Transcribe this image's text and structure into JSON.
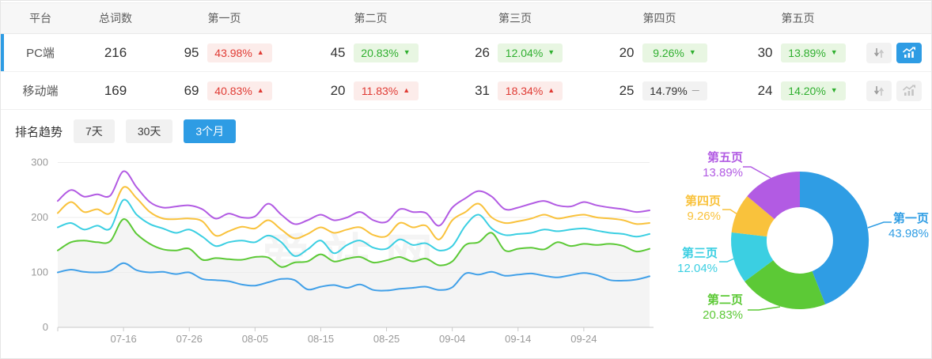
{
  "table": {
    "columns": [
      "平台",
      "总词数",
      "第一页",
      "第二页",
      "第三页",
      "第四页",
      "第五页"
    ],
    "rows": [
      {
        "platform": "PC端",
        "total": "216",
        "selected": true,
        "chart_active": true,
        "pages": [
          {
            "count": "95",
            "pct": "43.98%",
            "trend": "up"
          },
          {
            "count": "45",
            "pct": "20.83%",
            "trend": "down"
          },
          {
            "count": "26",
            "pct": "12.04%",
            "trend": "down"
          },
          {
            "count": "20",
            "pct": "9.26%",
            "trend": "down"
          },
          {
            "count": "30",
            "pct": "13.89%",
            "trend": "down"
          }
        ]
      },
      {
        "platform": "移动端",
        "total": "169",
        "selected": false,
        "chart_active": false,
        "pages": [
          {
            "count": "69",
            "pct": "40.83%",
            "trend": "up"
          },
          {
            "count": "20",
            "pct": "11.83%",
            "trend": "up"
          },
          {
            "count": "31",
            "pct": "18.34%",
            "trend": "up"
          },
          {
            "count": "25",
            "pct": "14.79%",
            "trend": "flat"
          },
          {
            "count": "24",
            "pct": "14.20%",
            "trend": "down"
          }
        ]
      }
    ]
  },
  "trend": {
    "title": "排名趋势",
    "tabs": [
      {
        "label": "7天",
        "active": false
      },
      {
        "label": "30天",
        "active": false
      },
      {
        "label": "3个月",
        "active": true
      }
    ]
  },
  "watermark": "爱站网",
  "colors": {
    "accent_blue": "#2e9ce4",
    "badge_up_bg": "#fcecea",
    "badge_up_text": "#e03b34",
    "badge_down_bg": "#e8f6e2",
    "badge_down_text": "#2faf2f",
    "badge_flat_bg": "#f2f2f2",
    "badge_flat_text": "#333333",
    "axis_label": "#999999",
    "grid_line": "#ededed",
    "axis_line": "#c9c9c9",
    "area_fill": "#f4f4f4"
  },
  "chart_data": [
    {
      "type": "line",
      "title": "排名趋势（3个月）",
      "x_ticks": [
        "07-16",
        "07-26",
        "08-05",
        "08-15",
        "08-25",
        "09-04",
        "09-14",
        "09-24"
      ],
      "x_tick_days": [
        10,
        20,
        30,
        40,
        50,
        60,
        70,
        80
      ],
      "x_range_days": [
        0,
        90
      ],
      "point_step_days": 2,
      "y_ticks": [
        0,
        100,
        200,
        300
      ],
      "ylim": [
        0,
        300
      ],
      "grid": true,
      "legend_position": "none",
      "series": [
        {
          "name": "第一页",
          "color": "#41a0e8",
          "values": [
            100,
            105,
            101,
            100,
            103,
            117,
            104,
            100,
            101,
            97,
            100,
            88,
            86,
            84,
            78,
            76,
            82,
            88,
            86,
            69,
            74,
            77,
            72,
            78,
            68,
            67,
            70,
            72,
            74,
            68,
            73,
            98,
            96,
            101,
            94,
            96,
            98,
            94,
            91,
            95,
            99,
            95,
            86,
            85,
            87,
            93
          ]
        },
        {
          "name": "第二页",
          "color": "#5cc936",
          "area_fill": true,
          "values": [
            140,
            155,
            158,
            155,
            157,
            197,
            170,
            152,
            142,
            140,
            143,
            123,
            126,
            124,
            123,
            128,
            127,
            110,
            118,
            120,
            133,
            120,
            125,
            128,
            118,
            122,
            128,
            120,
            125,
            113,
            120,
            150,
            155,
            172,
            140,
            143,
            145,
            142,
            155,
            148,
            152,
            150,
            152,
            148,
            138,
            143
          ]
        },
        {
          "name": "第三页",
          "color": "#3bcfe2",
          "values": [
            182,
            190,
            178,
            185,
            180,
            232,
            205,
            188,
            180,
            172,
            178,
            165,
            148,
            155,
            158,
            155,
            167,
            155,
            130,
            142,
            158,
            135,
            150,
            158,
            145,
            143,
            160,
            150,
            153,
            140,
            148,
            185,
            205,
            180,
            168,
            170,
            172,
            178,
            175,
            178,
            180,
            176,
            172,
            170,
            165,
            170
          ]
        },
        {
          "name": "第四页",
          "color": "#f9c23c",
          "values": [
            208,
            228,
            210,
            215,
            208,
            255,
            235,
            210,
            198,
            197,
            198,
            193,
            167,
            175,
            183,
            180,
            195,
            178,
            162,
            170,
            182,
            172,
            178,
            182,
            168,
            166,
            190,
            182,
            185,
            160,
            195,
            210,
            225,
            200,
            190,
            193,
            198,
            205,
            198,
            202,
            205,
            200,
            198,
            195,
            188,
            190
          ]
        },
        {
          "name": "第五页",
          "color": "#b25be3",
          "values": [
            230,
            250,
            238,
            242,
            240,
            284,
            255,
            228,
            218,
            220,
            222,
            215,
            198,
            207,
            200,
            202,
            225,
            205,
            188,
            195,
            205,
            195,
            200,
            210,
            195,
            192,
            215,
            210,
            208,
            185,
            218,
            235,
            248,
            238,
            215,
            218,
            225,
            230,
            222,
            220,
            228,
            222,
            218,
            215,
            210,
            213
          ]
        }
      ]
    },
    {
      "type": "pie",
      "donut": true,
      "slices": [
        {
          "label": "第一页",
          "pct": 43.98,
          "pct_text": "43.98%",
          "color": "#2f9de4"
        },
        {
          "label": "第二页",
          "pct": 20.83,
          "pct_text": "20.83%",
          "color": "#5cc936"
        },
        {
          "label": "第三页",
          "pct": 12.04,
          "pct_text": "12.04%",
          "color": "#3bcfe2"
        },
        {
          "label": "第四页",
          "pct": 9.26,
          "pct_text": "9.26%",
          "color": "#f9c23c"
        },
        {
          "label": "第五页",
          "pct": 13.89,
          "pct_text": "13.89%",
          "color": "#b25be3"
        }
      ]
    }
  ]
}
